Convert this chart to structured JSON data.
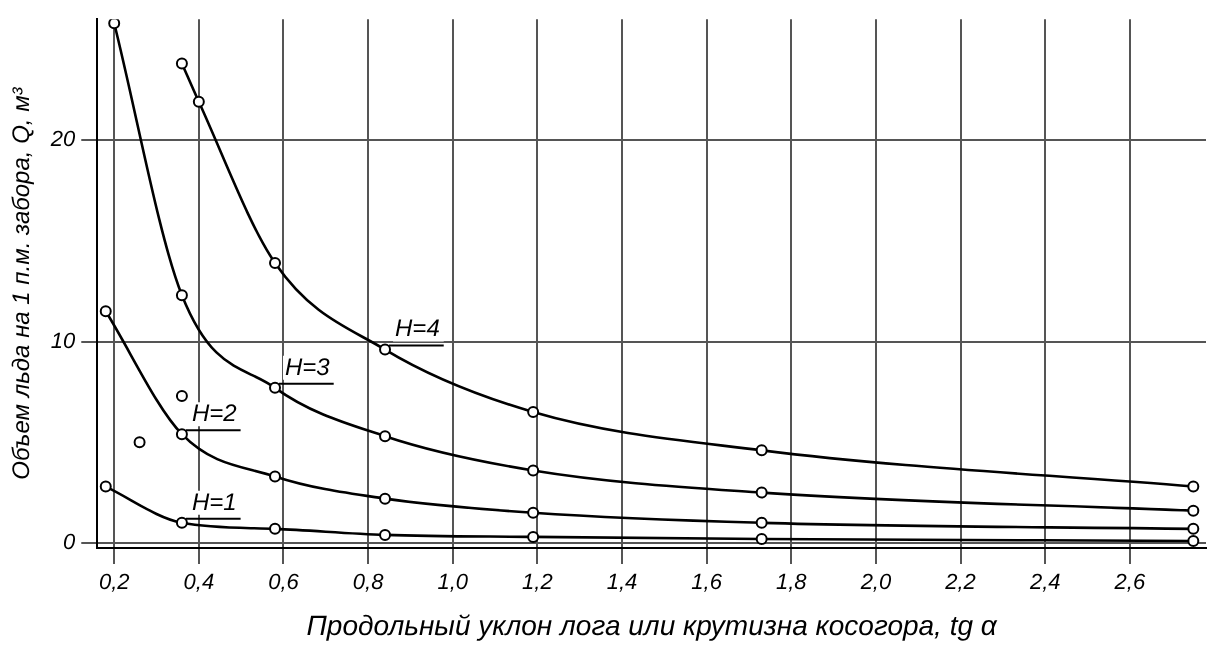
{
  "chart_data": {
    "type": "line",
    "xlabel": "Продольный уклон лога или крутизна косогора, tg α",
    "ylabel": "Объем льда на 1 п.м. забора, Q, м³",
    "xlim": [
      0.16,
      2.78
    ],
    "ylim": [
      -0.25,
      26
    ],
    "xticks": [
      {
        "value": 0.2,
        "label": "0,2"
      },
      {
        "value": 0.4,
        "label": "0,4"
      },
      {
        "value": 0.6,
        "label": "0,6"
      },
      {
        "value": 0.8,
        "label": "0,8"
      },
      {
        "value": 1.0,
        "label": "1,0"
      },
      {
        "value": 1.2,
        "label": "1,2"
      },
      {
        "value": 1.4,
        "label": "1,4"
      },
      {
        "value": 1.6,
        "label": "1,6"
      },
      {
        "value": 1.8,
        "label": "1,8"
      },
      {
        "value": 2.0,
        "label": "2,0"
      },
      {
        "value": 2.2,
        "label": "2,2"
      },
      {
        "value": 2.4,
        "label": "2,4"
      },
      {
        "value": 2.6,
        "label": "2,6"
      }
    ],
    "yticks": [
      0,
      10,
      20
    ],
    "grid": true,
    "marker": "circle",
    "line_style": "solid",
    "legend": false,
    "series": [
      {
        "name": "H=1",
        "color": "#000000",
        "x": [
          0.18,
          0.36,
          0.58,
          0.84,
          1.19,
          1.73,
          2.75
        ],
        "values": [
          2.8,
          1.0,
          0.7,
          0.4,
          0.3,
          0.2,
          0.1
        ]
      },
      {
        "name": "H=2",
        "color": "#000000",
        "x": [
          0.18,
          0.36,
          0.58,
          0.84,
          1.19,
          1.73,
          2.75
        ],
        "values": [
          11.5,
          5.4,
          3.3,
          2.2,
          1.5,
          1.0,
          0.7
        ]
      },
      {
        "name": "H=3",
        "color": "#000000",
        "x": [
          0.2,
          0.36,
          0.58,
          0.84,
          1.19,
          1.73,
          2.75
        ],
        "values": [
          25.8,
          12.3,
          7.7,
          5.3,
          3.6,
          2.5,
          1.6
        ]
      },
      {
        "name": "H=4",
        "color": "#000000",
        "x": [
          0.36,
          0.4,
          0.58,
          0.84,
          1.19,
          1.73,
          2.75
        ],
        "values": [
          23.8,
          21.9,
          13.9,
          9.6,
          6.5,
          4.6,
          2.8
        ]
      },
      {
        "type": "scatter",
        "color": "#000000",
        "x": [
          0.36,
          0.26
        ],
        "values": [
          7.3,
          5.0
        ]
      }
    ]
  }
}
